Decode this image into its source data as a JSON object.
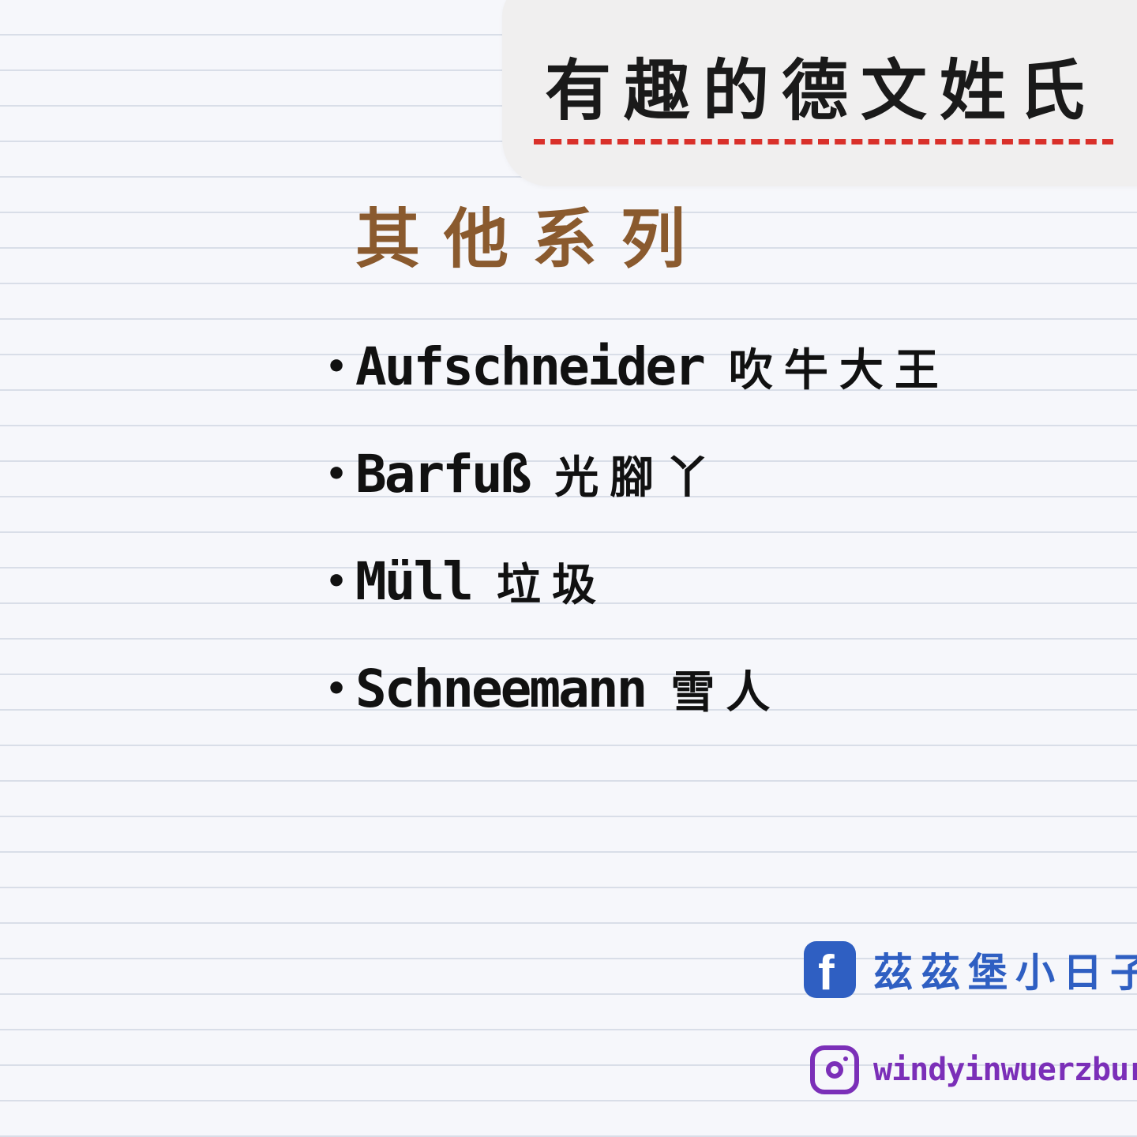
{
  "header": {
    "title": "有趣的德文姓氏"
  },
  "section": {
    "subtitle": "其他系列"
  },
  "items": [
    {
      "bullet": "•",
      "german": "Aufschneider",
      "chinese": "吹牛大王"
    },
    {
      "bullet": "•",
      "german": "Barfuß",
      "chinese": "光腳丫"
    },
    {
      "bullet": "•",
      "german": "Müll",
      "chinese": "垃圾"
    },
    {
      "bullet": "•",
      "german": "Schneemann",
      "chinese": "雪人"
    }
  ],
  "footer": {
    "facebook": {
      "icon": "facebook-icon",
      "icon_glyph": "f",
      "label": "茲茲堡小日子",
      "color": "#2f5fc2"
    },
    "instagram": {
      "icon": "instagram-icon",
      "label": "windyinwuerzburg",
      "color": "#7b2fb8"
    }
  },
  "colors": {
    "title_underline": "#d9302a",
    "subtitle": "#8a5a2e",
    "text": "#111111"
  }
}
